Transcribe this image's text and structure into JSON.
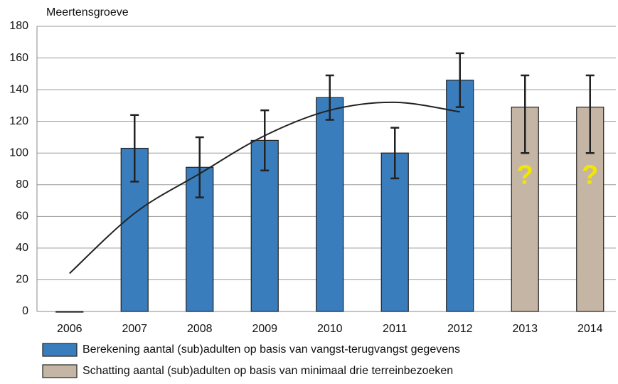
{
  "chart_data": {
    "type": "bar",
    "y_label": "Meertensgroeve",
    "categories": [
      "2006",
      "2007",
      "2008",
      "2009",
      "2010",
      "2011",
      "2012",
      "2013",
      "2014"
    ],
    "series": [
      {
        "name": "Berekening aantal (sub)adulten op basis van  vangst-terugvangst gegevens",
        "color": "#3a7dbd",
        "values": [
          0,
          103,
          91,
          108,
          135,
          100,
          146,
          null,
          null
        ],
        "error_high": [
          null,
          124,
          110,
          127,
          149,
          116,
          163,
          null,
          null
        ],
        "error_low": [
          null,
          82,
          72,
          89,
          121,
          84,
          129,
          null,
          null
        ]
      },
      {
        "name": "Schatting aantal (sub)adulten op basis van minimaal drie terreinbezoeken",
        "color": "#c4b5a5",
        "values": [
          null,
          null,
          null,
          null,
          null,
          null,
          null,
          129,
          129
        ],
        "error_high": [
          null,
          null,
          null,
          null,
          null,
          null,
          null,
          149,
          149
        ],
        "error_low": [
          null,
          null,
          null,
          null,
          null,
          null,
          null,
          100,
          100
        ]
      }
    ],
    "trendline": [
      24,
      62,
      87,
      111,
      127,
      132,
      126
    ],
    "annotations": [
      "?",
      "?"
    ],
    "annotation_color": "#f2e600",
    "ylim": [
      0,
      180
    ],
    "yticks": [
      0,
      20,
      40,
      60,
      80,
      100,
      120,
      140,
      160,
      180
    ],
    "grid": true
  }
}
